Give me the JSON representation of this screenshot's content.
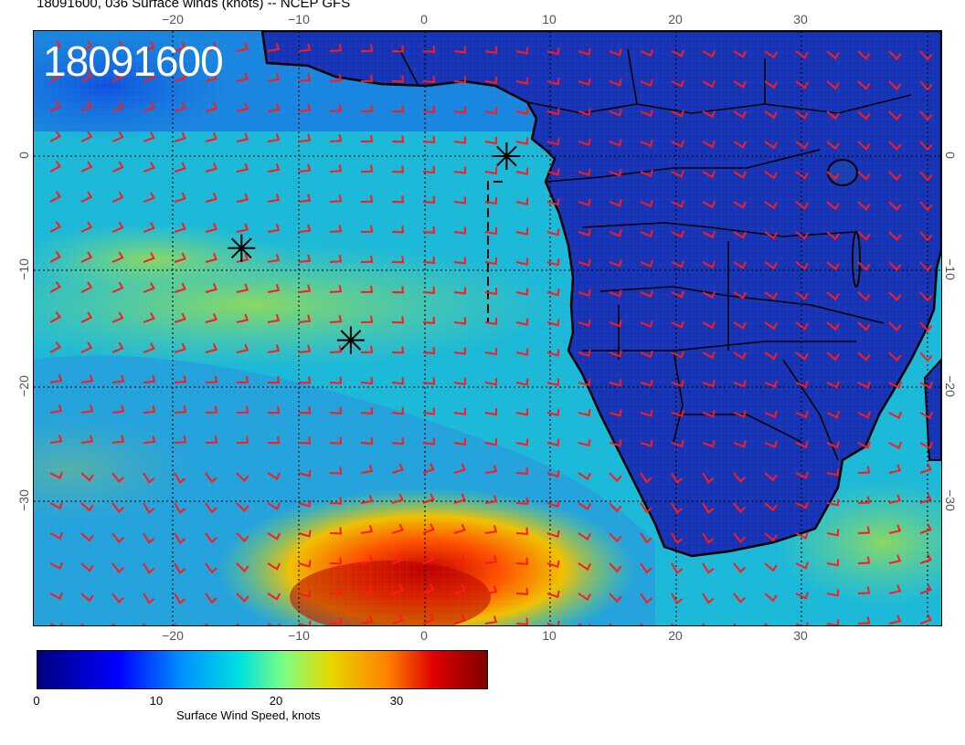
{
  "title": "18091600, 036 Surface winds (knots) -- NCEP GFS",
  "map_date_label": "18091600",
  "axes": {
    "lon_ticks": [
      "−20",
      "−10",
      "0",
      "10",
      "20",
      "30"
    ],
    "lat_ticks": [
      "0",
      "−10",
      "−20",
      "−30"
    ]
  },
  "colorbar": {
    "ticks": [
      "0",
      "10",
      "20",
      "30"
    ],
    "label": "Surface Wind Speed, knots",
    "colors": [
      "#00007f",
      "#0000ff",
      "#0090ff",
      "#00e0e0",
      "#7fff7f",
      "#e6d800",
      "#ff8000",
      "#e00000",
      "#7f0000"
    ]
  },
  "markers": [
    {
      "name": "storm-marker",
      "symbol": "asterisk",
      "lon": -14.6,
      "lat": -8.0
    },
    {
      "name": "storm-marker",
      "symbol": "asterisk",
      "lon": -5.9,
      "lat": -16.0
    },
    {
      "name": "storm-marker",
      "symbol": "asterisk",
      "lon": 6.5,
      "lat": 0.0
    }
  ],
  "colors": {
    "ocean_base": "#1cb8d8",
    "land": "#1733b5",
    "barb": "#ff1a1a",
    "grid": "#ffffff",
    "coast": "#000000"
  }
}
